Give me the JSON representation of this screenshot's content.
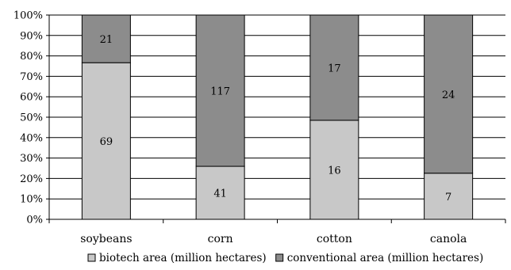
{
  "chart_data": {
    "type": "bar",
    "stacked": "percent",
    "categories": [
      "soybeans",
      "corn",
      "cotton",
      "canola"
    ],
    "series": [
      {
        "name": "biotech area (million hectares)",
        "values": [
          69,
          41,
          16,
          7
        ],
        "color": "#c8c8c8"
      },
      {
        "name": "conventional area (million hectares)",
        "values": [
          21,
          117,
          17,
          24
        ],
        "color": "#8c8c8c"
      }
    ],
    "yticks": [
      "0%",
      "10%",
      "20%",
      "30%",
      "40%",
      "50%",
      "60%",
      "70%",
      "80%",
      "90%",
      "100%"
    ],
    "ylim": [
      0,
      100
    ],
    "grid": true,
    "legend": "bottom"
  }
}
